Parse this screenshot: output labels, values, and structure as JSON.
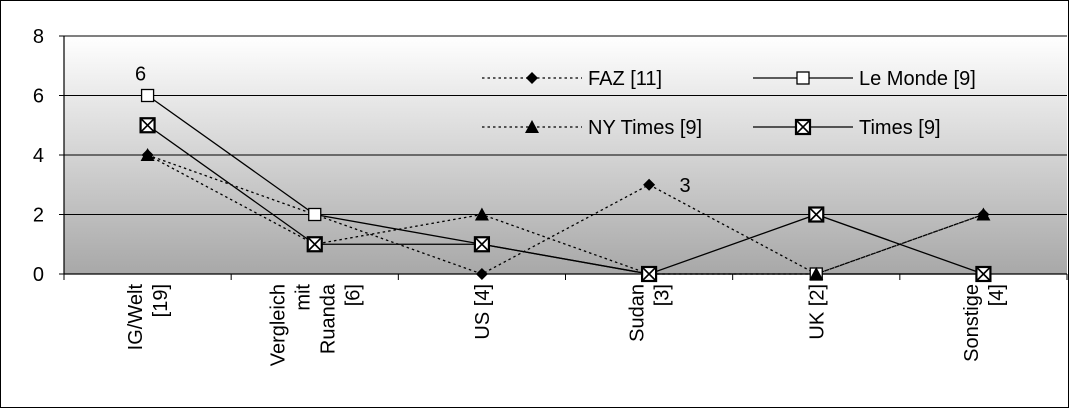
{
  "chart_data": {
    "type": "line",
    "title": "",
    "xlabel": "",
    "ylabel": "",
    "ylim": [
      0,
      8
    ],
    "yticks": [
      0,
      2,
      4,
      6,
      8
    ],
    "grid": "horizontal",
    "legend_position": "top-right",
    "categories": [
      [
        "IG/Welt",
        "[19]"
      ],
      [
        "Vergleich",
        "mit",
        "Ruanda",
        "[6]"
      ],
      [
        "US [4]"
      ],
      [
        "Sudan",
        "[3]"
      ],
      [
        "UK [2]"
      ],
      [
        "Sonstige",
        "[4]"
      ]
    ],
    "series": [
      {
        "name": "FAZ [11]",
        "values": [
          4,
          2,
          0,
          3,
          0,
          2
        ],
        "line": "dotted",
        "marker": "diamond-filled"
      },
      {
        "name": "Le Monde [9]",
        "values": [
          6,
          2,
          1,
          0,
          0,
          0
        ],
        "line": "solid",
        "marker": "square-open"
      },
      {
        "name": "NY Times [9]",
        "values": [
          4,
          1,
          2,
          0,
          0,
          2
        ],
        "line": "dotted",
        "marker": "triangle-filled"
      },
      {
        "name": "Times [9]",
        "values": [
          5,
          1,
          1,
          0,
          2,
          0
        ],
        "line": "solid",
        "marker": "square-x"
      }
    ],
    "annotations": [
      {
        "text": "6",
        "category_index": 0,
        "value": 6,
        "series": "Le Monde [9]"
      },
      {
        "text": "3",
        "category_index": 3,
        "value": 3,
        "series": "FAZ [11]"
      }
    ]
  }
}
